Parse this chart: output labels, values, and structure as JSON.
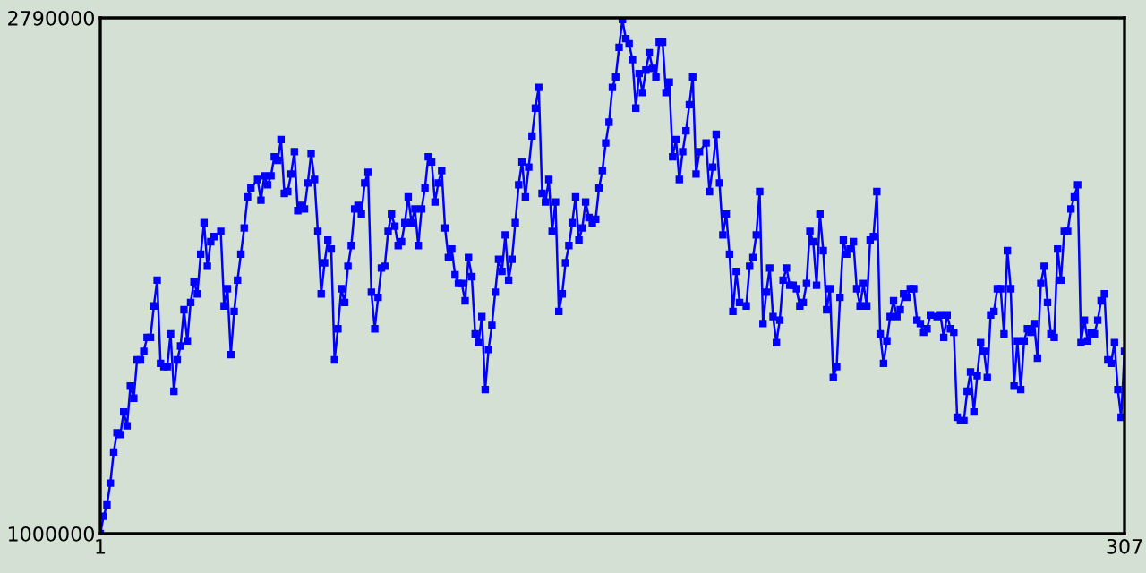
{
  "chart_data": {
    "type": "line",
    "xlim": [
      1,
      307
    ],
    "ylim": [
      1000000,
      2790000
    ],
    "xticks": [
      1,
      307
    ],
    "yticks": [
      1000000,
      2790000
    ],
    "marker": "square",
    "line_style": "solid",
    "series": [
      {
        "color": "#0000ff",
        "x": [
          1,
          2,
          3,
          4,
          5,
          6,
          7,
          8,
          9,
          10,
          11,
          12,
          13,
          14,
          15,
          16,
          17,
          18,
          19,
          20,
          21,
          22,
          23,
          24,
          25,
          26,
          27,
          28,
          29,
          30,
          31,
          32,
          33,
          34,
          35,
          37,
          38,
          39,
          40,
          41,
          42,
          43,
          44,
          45,
          46,
          48,
          49,
          50,
          51,
          52,
          53,
          54,
          55,
          56,
          57,
          58,
          59,
          60,
          61,
          62,
          63,
          64,
          65,
          66,
          67,
          68,
          69,
          70,
          71,
          72,
          73,
          74,
          75,
          76,
          77,
          78,
          79,
          80,
          81,
          82,
          83,
          84,
          85,
          86,
          87,
          88,
          89,
          90,
          91,
          92,
          93,
          94,
          95,
          96,
          97,
          98,
          99,
          100,
          101,
          102,
          103,
          104,
          105,
          106,
          107,
          108,
          109,
          110,
          111,
          112,
          113,
          114,
          115,
          116,
          117,
          118,
          119,
          120,
          121,
          122,
          123,
          124,
          125,
          126,
          127,
          128,
          129,
          130,
          131,
          132,
          133,
          134,
          135,
          136,
          137,
          138,
          139,
          140,
          141,
          142,
          143,
          144,
          145,
          146,
          147,
          148,
          149,
          150,
          151,
          152,
          153,
          154,
          155,
          156,
          157,
          158,
          159,
          160,
          161,
          162,
          163,
          164,
          165,
          166,
          167,
          168,
          169,
          170,
          171,
          172,
          173,
          174,
          175,
          176,
          177,
          178,
          179,
          180,
          182,
          183,
          184,
          185,
          186,
          187,
          188,
          189,
          190,
          191,
          192,
          194,
          195,
          196,
          197,
          198,
          199,
          200,
          201,
          202,
          203,
          204,
          205,
          206,
          207,
          208,
          209,
          210,
          211,
          212,
          213,
          214,
          215,
          216,
          217,
          218,
          219,
          220,
          221,
          222,
          223,
          224,
          225,
          226,
          227,
          228,
          229,
          230,
          231,
          232,
          233,
          234,
          235,
          236,
          237,
          238,
          239,
          240,
          241,
          242,
          243,
          244,
          245,
          246,
          247,
          248,
          249,
          251,
          252,
          253,
          254,
          255,
          256,
          257,
          258,
          259,
          260,
          261,
          262,
          263,
          264,
          265,
          266,
          267,
          268,
          269,
          270,
          271,
          272,
          273,
          274,
          275,
          276,
          277,
          278,
          279,
          280,
          281,
          282,
          283,
          284,
          285,
          286,
          287,
          288,
          289,
          290,
          291,
          292,
          293,
          294,
          295,
          296,
          297,
          298,
          299,
          300,
          301,
          302,
          303,
          304,
          305,
          306,
          307
        ],
        "values": [
          1000000,
          1060000,
          1100000,
          1175000,
          1283000,
          1350000,
          1344000,
          1422000,
          1374000,
          1512000,
          1470000,
          1603000,
          1603000,
          1633000,
          1681000,
          1681000,
          1790000,
          1880000,
          1591000,
          1579000,
          1579000,
          1693000,
          1494000,
          1603000,
          1651000,
          1777000,
          1669000,
          1802000,
          1874000,
          1832000,
          1970000,
          2079000,
          1928000,
          2013000,
          2031000,
          2049000,
          1790000,
          1850000,
          1621000,
          1771000,
          1880000,
          1970000,
          2061000,
          2169000,
          2199000,
          2229000,
          2157000,
          2242000,
          2211000,
          2242000,
          2308000,
          2296000,
          2368000,
          2181000,
          2187000,
          2248000,
          2326000,
          2121000,
          2139000,
          2127000,
          2217000,
          2320000,
          2229000,
          2049000,
          1832000,
          1940000,
          2019000,
          1988000,
          1603000,
          1711000,
          1850000,
          1802000,
          1928000,
          2000000,
          2127000,
          2139000,
          2109000,
          2217000,
          2254000,
          1838000,
          1711000,
          1820000,
          1922000,
          1928000,
          2049000,
          2109000,
          2067000,
          2000000,
          2013000,
          2079000,
          2169000,
          2079000,
          2127000,
          2000000,
          2127000,
          2199000,
          2308000,
          2290000,
          2151000,
          2217000,
          2260000,
          2061000,
          1958000,
          1988000,
          1898000,
          1868000,
          1868000,
          1808000,
          1958000,
          1892000,
          1693000,
          1663000,
          1753000,
          1500000,
          1639000,
          1723000,
          1838000,
          1952000,
          1910000,
          2037000,
          1880000,
          1952000,
          2079000,
          2211000,
          2290000,
          2169000,
          2272000,
          2380000,
          2477000,
          2549000,
          2181000,
          2151000,
          2229000,
          2049000,
          2151000,
          1771000,
          1832000,
          1940000,
          2000000,
          2079000,
          2169000,
          2019000,
          2061000,
          2151000,
          2097000,
          2079000,
          2091000,
          2199000,
          2260000,
          2356000,
          2428000,
          2549000,
          2585000,
          2688000,
          2784000,
          2718000,
          2700000,
          2645000,
          2477000,
          2597000,
          2531000,
          2609000,
          2669000,
          2615000,
          2585000,
          2706000,
          2706000,
          2531000,
          2567000,
          2308000,
          2368000,
          2229000,
          2326000,
          2398000,
          2489000,
          2585000,
          2248000,
          2326000,
          2356000,
          2187000,
          2272000,
          2386000,
          2217000,
          2037000,
          2109000,
          1970000,
          1771000,
          1910000,
          1802000,
          1790000,
          1928000,
          1958000,
          2037000,
          2187000,
          1729000,
          1838000,
          1922000,
          1753000,
          1663000,
          1741000,
          1880000,
          1922000,
          1862000,
          1862000,
          1850000,
          1790000,
          1802000,
          1868000,
          2049000,
          2013000,
          1862000,
          2109000,
          1982000,
          1777000,
          1850000,
          1542000,
          1579000,
          1820000,
          2019000,
          1970000,
          1988000,
          2013000,
          1850000,
          1790000,
          1868000,
          1790000,
          2019000,
          2031000,
          2187000,
          1693000,
          1591000,
          1669000,
          1753000,
          1808000,
          1753000,
          1777000,
          1832000,
          1820000,
          1850000,
          1850000,
          1741000,
          1729000,
          1699000,
          1711000,
          1759000,
          1753000,
          1759000,
          1681000,
          1759000,
          1711000,
          1699000,
          1404000,
          1392000,
          1392000,
          1494000,
          1561000,
          1422000,
          1548000,
          1663000,
          1633000,
          1542000,
          1759000,
          1771000,
          1850000,
          1850000,
          1693000,
          1982000,
          1850000,
          1512000,
          1669000,
          1500000,
          1669000,
          1711000,
          1699000,
          1729000,
          1609000,
          1868000,
          1928000,
          1802000,
          1693000,
          1681000,
          1988000,
          1880000,
          2049000,
          2049000,
          2127000,
          2169000,
          2211000,
          1663000,
          1741000,
          1669000,
          1699000,
          1693000,
          1741000,
          1808000,
          1832000,
          1603000,
          1591000,
          1663000,
          1500000,
          1404000,
          1633000
        ]
      }
    ]
  }
}
